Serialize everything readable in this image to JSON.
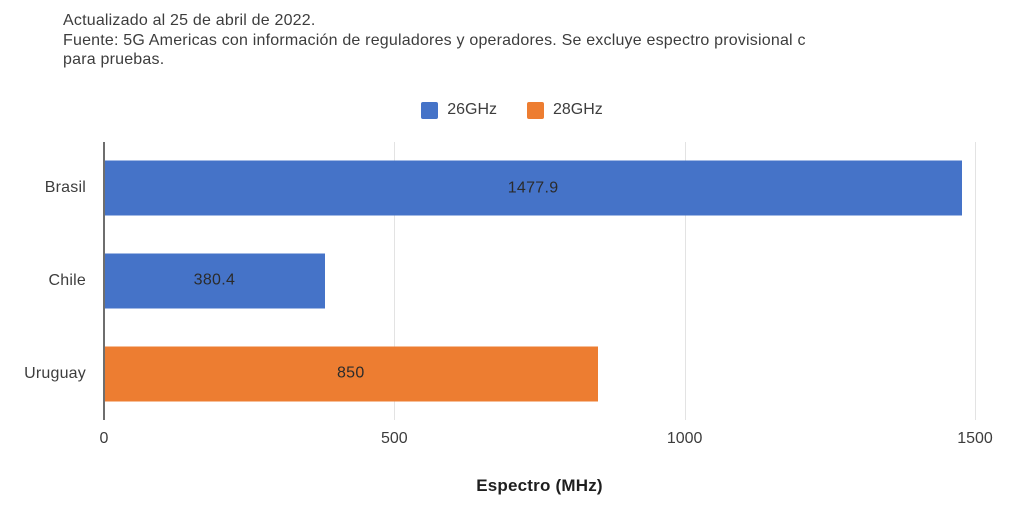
{
  "header": {
    "line1": "Actualizado al 25 de abril de 2022.",
    "line2": "Fuente: 5G Americas con información de reguladores y operadores. Se excluye espectro provisional c",
    "line3": "para pruebas."
  },
  "colors": {
    "blue_26ghz": "#4573C8",
    "orange_28ghz": "#ED7D31",
    "axis_line": "#6e6e6e",
    "gridline": "#e3e3e3",
    "text": "#3d3d3d"
  },
  "chart_data": {
    "type": "bar",
    "orientation": "horizontal",
    "title": "",
    "xlabel": "Espectro (MHz)",
    "categories": [
      "Brasil",
      "Chile",
      "Uruguay"
    ],
    "series": [
      {
        "name": "26GHz",
        "color": "#4573C8",
        "values": [
          1477.9,
          380.4,
          null
        ]
      },
      {
        "name": "28GHz",
        "color": "#ED7D31",
        "values": [
          null,
          null,
          850
        ]
      }
    ],
    "value_labels": [
      "1477.9",
      "380.4",
      "850"
    ],
    "xlim": [
      0,
      1500
    ],
    "xticks": [
      0,
      500,
      1000,
      1500
    ],
    "grid": true,
    "legend_position": "top center"
  }
}
